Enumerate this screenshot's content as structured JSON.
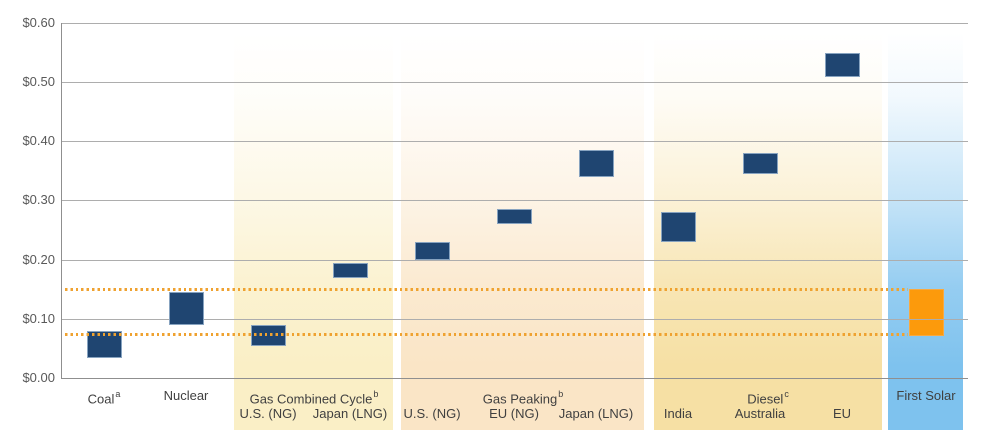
{
  "chart_data": {
    "type": "bar",
    "subtype": "floating-range-columns",
    "title": "",
    "xlabel": "",
    "ylabel": "",
    "y_axis": {
      "min": 0,
      "max": 0.6,
      "tick_step": 0.1,
      "tick_labels": [
        "$0.00",
        "$0.10",
        "$0.20",
        "$0.30",
        "$0.40",
        "$0.50",
        "$0.60"
      ]
    },
    "grid": "horizontal",
    "reference_lines": [
      {
        "name": "upper-dotted-threshold",
        "value": 0.15,
        "style": "dotted"
      },
      {
        "name": "lower-dotted-threshold",
        "value": 0.075,
        "style": "dotted"
      }
    ],
    "groups": [
      {
        "label": "Coal",
        "sup": "a",
        "band_color": null,
        "items": [
          {
            "label": "",
            "low": 0.035,
            "high": 0.08,
            "color_key": "bar_navy"
          }
        ]
      },
      {
        "label": "Nuclear",
        "sup": "",
        "band_color": null,
        "items": [
          {
            "label": "",
            "low": 0.09,
            "high": 0.145,
            "color_key": "bar_navy"
          }
        ]
      },
      {
        "label": "Gas Combined Cycle",
        "sup": "b",
        "band_color": "#faefc6",
        "items": [
          {
            "label": "U.S. (NG)",
            "low": 0.055,
            "high": 0.09,
            "color_key": "bar_navy"
          },
          {
            "label": "Japan (LNG)",
            "low": 0.17,
            "high": 0.195,
            "color_key": "bar_navy"
          }
        ]
      },
      {
        "label": "Gas Peaking",
        "sup": "b",
        "band_color": "#fae5c6",
        "items": [
          {
            "label": "U.S. (NG)",
            "low": 0.2,
            "high": 0.23,
            "color_key": "bar_navy"
          },
          {
            "label": "EU (NG)",
            "low": 0.26,
            "high": 0.285,
            "color_key": "bar_navy"
          },
          {
            "label": "Japan (LNG)",
            "low": 0.34,
            "high": 0.385,
            "color_key": "bar_navy"
          }
        ]
      },
      {
        "label": "Diesel",
        "sup": "c",
        "band_color": "#f6e0a4",
        "items": [
          {
            "label": "India",
            "low": 0.23,
            "high": 0.28,
            "color_key": "bar_navy"
          },
          {
            "label": "Australia",
            "low": 0.345,
            "high": 0.38,
            "color_key": "bar_navy"
          },
          {
            "label": "EU",
            "low": 0.51,
            "high": 0.55,
            "color_key": "bar_navy"
          }
        ]
      },
      {
        "label": "First Solar",
        "sup": "",
        "band_color": "#7ec2ee",
        "items": [
          {
            "label": "",
            "low": 0.07,
            "high": 0.15,
            "color_key": "bar_orange"
          }
        ]
      }
    ]
  },
  "colors": {
    "bar_navy": "#1f4571",
    "bar_navy_border": "#87a3c0",
    "bar_orange": "#fc9a0c",
    "bar_orange_border": "#f9a940",
    "reference_dotted": "#efa230",
    "gridline": "#adadad",
    "axis_line": "#8f8f8f",
    "axis_text": "#595959",
    "label_text": "#404040",
    "background": "#ffffff"
  }
}
